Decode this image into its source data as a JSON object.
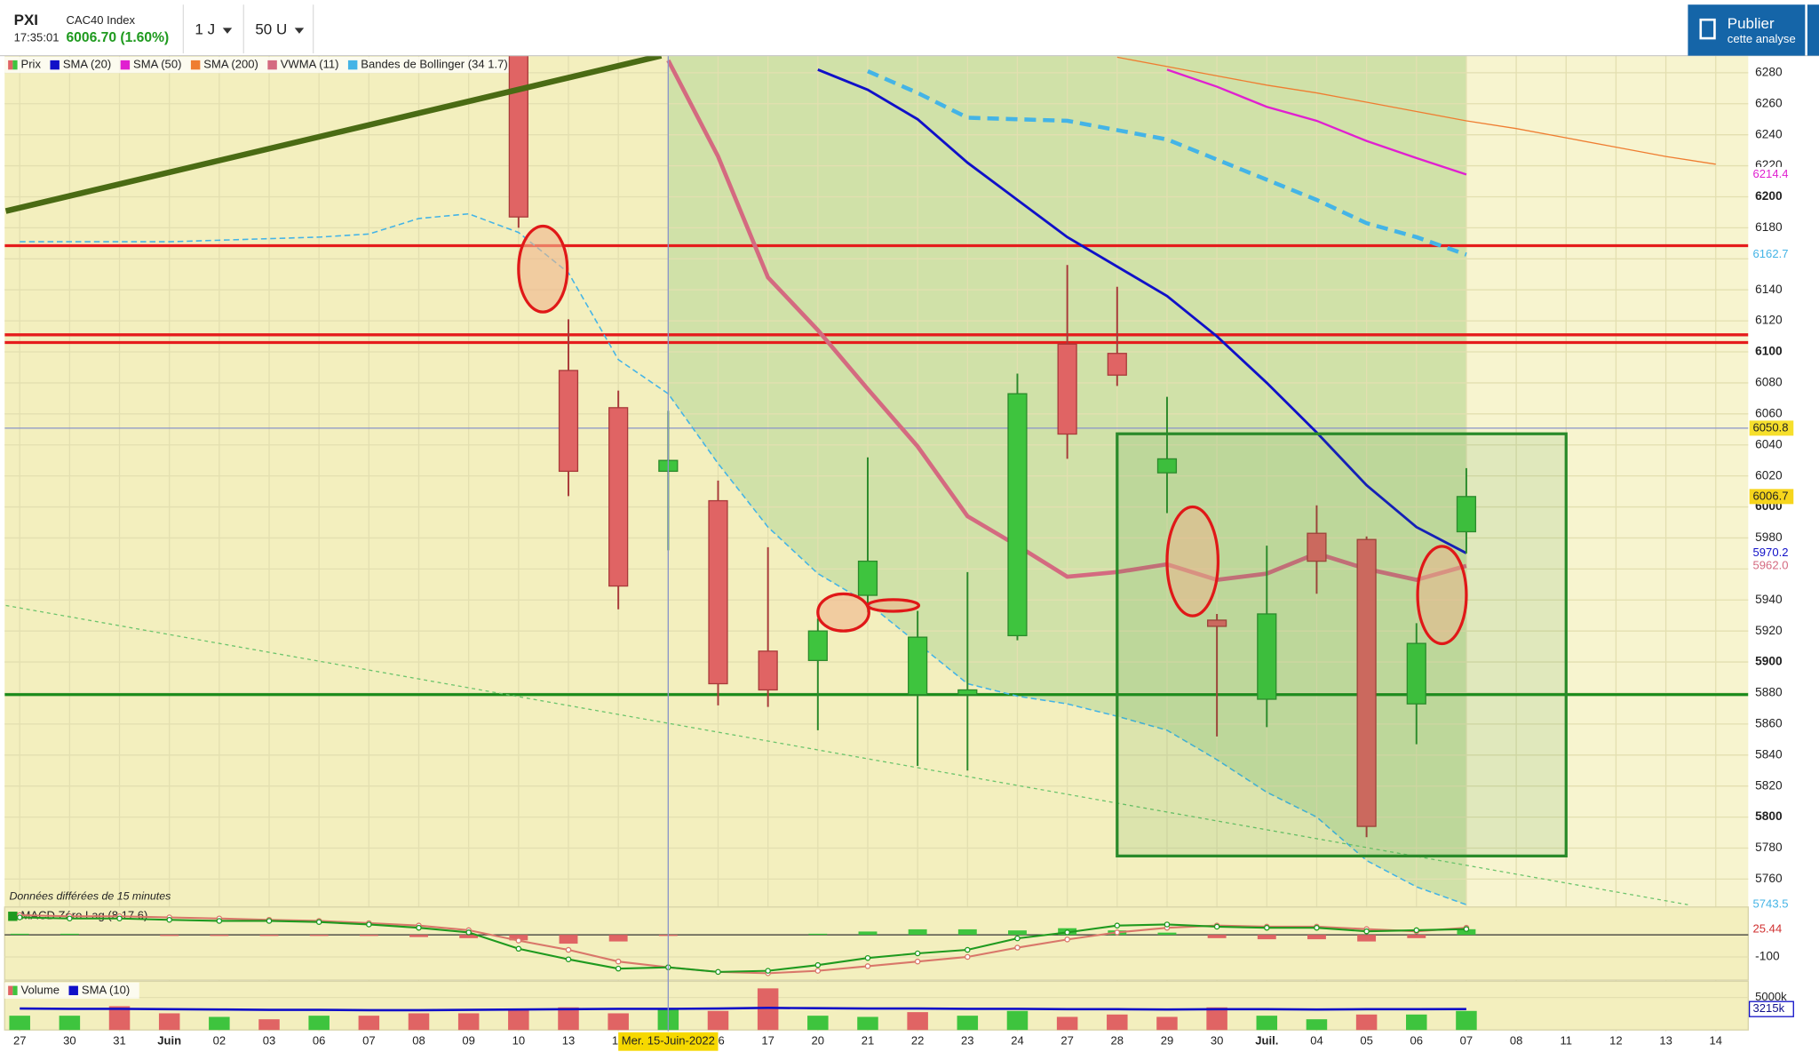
{
  "header": {
    "symbol": "PXI",
    "time": "17:35:01",
    "name": "CAC40 Index",
    "quote": "6006.70 (1.60%)",
    "interval": "1 J",
    "range": "50 U",
    "publish": "Publier",
    "publish_sub": "cette analyse"
  },
  "notice": "Données différées de 15 minutes",
  "chart_data": [
    {
      "type": "candlestick",
      "price_name": "Prix",
      "up_color": "#3ec43e",
      "down_color": "#e06464",
      "categories": [
        "27",
        "30",
        "31",
        "Juin",
        "02",
        "03",
        "06",
        "07",
        "08",
        "09",
        "10",
        "13",
        "14",
        "15",
        "16",
        "17",
        "20",
        "21",
        "22",
        "23",
        "24",
        "27",
        "28",
        "29",
        "30",
        "Juil.",
        "04",
        "05",
        "06",
        "07",
        "08",
        "11",
        "12",
        "13",
        "14"
      ],
      "crosshair": {
        "category": "Mer. 15-Juin-2022",
        "value": 6050.8
      },
      "open": [
        null,
        null,
        null,
        null,
        null,
        null,
        null,
        null,
        null,
        null,
        6300,
        6088,
        6064,
        6023,
        6004,
        5907,
        5901,
        5943,
        5879,
        5879,
        5917,
        6105,
        6099,
        6022,
        5927,
        5876,
        5983,
        5979,
        5873,
        5984,
        null,
        null,
        null,
        null,
        null
      ],
      "high": [
        null,
        null,
        null,
        null,
        null,
        null,
        null,
        null,
        null,
        null,
        6320,
        6121,
        6075,
        6062,
        6017,
        5974,
        5928,
        6032,
        5933,
        5958,
        6086,
        6156,
        6142,
        6071,
        5931,
        5975,
        6001,
        5981,
        5925,
        6025,
        null,
        null,
        null,
        null,
        null
      ],
      "low": [
        null,
        null,
        null,
        null,
        null,
        null,
        null,
        null,
        null,
        null,
        6180,
        6007,
        5934,
        5972,
        5872,
        5871,
        5856,
        5932,
        5833,
        5830,
        5914,
        6031,
        6078,
        5996,
        5852,
        5858,
        5944,
        5787,
        5847,
        5970,
        null,
        null,
        null,
        null,
        null
      ],
      "close": [
        null,
        null,
        null,
        null,
        null,
        null,
        null,
        null,
        null,
        null,
        6187,
        6023,
        5949,
        6030,
        5886,
        5882,
        5920,
        5965,
        5916,
        5882,
        6073,
        6047,
        6085,
        6031,
        5923,
        5931,
        5965,
        5794,
        5912,
        6006.7,
        null,
        null,
        null,
        null,
        null
      ],
      "series": [
        {
          "name": "SMA (20)",
          "color": "#1010c8",
          "values": [
            null,
            null,
            null,
            null,
            null,
            null,
            null,
            null,
            null,
            null,
            null,
            null,
            null,
            null,
            null,
            null,
            6282,
            6269,
            6250,
            6222,
            6198,
            6174,
            6155,
            6136,
            6110,
            6080,
            6048,
            6014,
            5987,
            5970.2,
            null,
            null,
            null,
            null,
            null
          ]
        },
        {
          "name": "SMA (50)",
          "color": "#e020d0",
          "values": [
            null,
            null,
            null,
            null,
            null,
            null,
            null,
            null,
            null,
            null,
            null,
            null,
            null,
            null,
            null,
            null,
            null,
            null,
            null,
            null,
            null,
            null,
            null,
            6282,
            6271,
            6258,
            6249,
            6236,
            6225,
            6214.4,
            null,
            null,
            null,
            null,
            null
          ]
        },
        {
          "name": "SMA (200)",
          "color": "#ef7d31",
          "values": [
            null,
            null,
            null,
            null,
            null,
            null,
            null,
            null,
            null,
            null,
            null,
            null,
            null,
            null,
            null,
            null,
            null,
            null,
            null,
            null,
            null,
            null,
            6290,
            6284,
            6278,
            6272,
            6267,
            6261,
            6255,
            6249,
            6244,
            6238,
            6232,
            6226,
            6221
          ]
        },
        {
          "name": "VWMA (11)",
          "color": "#d46a80",
          "values": [
            null,
            null,
            null,
            null,
            null,
            null,
            null,
            null,
            null,
            null,
            null,
            null,
            null,
            6288,
            6226,
            6148,
            6114,
            6076,
            6039,
            5994,
            5975,
            5955,
            5958,
            5963,
            5953,
            5957,
            5970,
            5960,
            5953,
            5962,
            null,
            null,
            null,
            null,
            null
          ],
          "value_labels": [
            null,
            null,
            null,
            null,
            null,
            null,
            null,
            null,
            null,
            null,
            null,
            null,
            null,
            null,
            null,
            null,
            null,
            null,
            null,
            null,
            null,
            null,
            null,
            null,
            null,
            null,
            null,
            null,
            null,
            "5962.0",
            null,
            null,
            null,
            null,
            null
          ]
        },
        {
          "name": "Bandes de Bollinger (34 1.7)",
          "color": "#44b4e6",
          "line_style": "dashed",
          "values": [
            null,
            null,
            null,
            null,
            null,
            null,
            null,
            null,
            null,
            null,
            null,
            null,
            null,
            null,
            null,
            null,
            null,
            6281,
            6267,
            6251,
            6250,
            6249,
            6243,
            6237,
            6224,
            6211,
            6198,
            6183,
            6174,
            6162.7,
            null,
            null,
            null,
            null,
            null
          ],
          "lower": [
            6171,
            6171,
            6171,
            6171,
            6172,
            6173,
            6174,
            6176,
            6186,
            6189,
            6177,
            6151,
            6095,
            6073,
            6028,
            5987,
            5957,
            5938,
            5912,
            5886,
            5878,
            5873,
            5865,
            5856,
            5837,
            5816,
            5800,
            5772,
            5755,
            5743.5,
            null,
            null,
            null,
            null,
            null
          ]
        }
      ],
      "hlines": [
        {
          "value": 6168.5,
          "color": "#e51c1c"
        },
        {
          "value": 6111,
          "color": "#e51c1c"
        },
        {
          "value": 6106,
          "color": "#e51c1c"
        },
        {
          "value": 5879,
          "color": "#1a8a1a"
        }
      ],
      "ylim": [
        5742,
        6291
      ],
      "yticks": [
        6280,
        6260,
        6240,
        6220,
        6200,
        6180,
        6160,
        6140,
        6120,
        6100,
        6080,
        6060,
        6040,
        6020,
        6000,
        5980,
        5960,
        5940,
        5920,
        5900,
        5880,
        5860,
        5840,
        5820,
        5800,
        5780,
        5760
      ],
      "grid": true
    },
    {
      "type": "macd",
      "title": "MACD Zéro Lag (8 17 6)",
      "up_color": "#3ec43e",
      "down_color": "#e06464",
      "macd_color": "#1f9a1f",
      "signal_color": "#d9776a",
      "histogram": [
        5,
        5,
        0,
        -5,
        -5,
        -5,
        -5,
        -5,
        -10,
        -15,
        -25,
        -40,
        -30,
        -5,
        0,
        0,
        5,
        15,
        25,
        25,
        20,
        30,
        20,
        10,
        -15,
        -20,
        -20,
        -30,
        -15,
        25.44,
        null,
        null,
        null,
        null,
        null
      ],
      "macd": [
        79,
        74,
        74,
        68,
        63,
        63,
        58,
        47,
        32,
        11,
        -63,
        -111,
        -153,
        -147,
        -168,
        -163,
        -137,
        -105,
        -84,
        -68,
        -16,
        11,
        42,
        47,
        37,
        32,
        32,
        16,
        21,
        26,
        null,
        null,
        null,
        null,
        null
      ],
      "signal": [
        89,
        84,
        84,
        79,
        74,
        68,
        63,
        53,
        42,
        21,
        -26,
        -68,
        -121,
        -147,
        -168,
        -174,
        -163,
        -142,
        -121,
        -100,
        -58,
        -21,
        11,
        32,
        42,
        37,
        37,
        26,
        16,
        32,
        null,
        null,
        null,
        null,
        null
      ],
      "ylim": [
        -205,
        126
      ],
      "yticks": [
        -100
      ]
    },
    {
      "type": "volume",
      "ylim": [
        0,
        7500
      ],
      "yticks": [
        {
          "value": 5000,
          "label": "5000k"
        }
      ],
      "series": [
        {
          "name": "Volume",
          "colors": [
            "#3ec43e",
            "#3ec43e",
            "#e06464",
            "#e06464",
            "#3ec43e",
            "#e06464",
            "#3ec43e",
            "#e06464",
            "#e06464",
            "#e06464",
            "#e06464",
            "#e06464",
            "#e06464",
            "#3ec43e",
            "#e06464",
            "#e06464",
            "#3ec43e",
            "#3ec43e",
            "#e06464",
            "#3ec43e",
            "#3ec43e",
            "#e06464",
            "#e06464",
            "#e06464",
            "#e06464",
            "#3ec43e",
            "#3ec43e",
            "#e06464",
            "#3ec43e",
            "#3ec43e",
            null,
            null,
            null,
            null,
            null
          ],
          "values": [
            2196,
            2196,
            3660,
            2562,
            2013,
            1647,
            2196,
            2196,
            2562,
            2562,
            3111,
            3477,
            2562,
            3111,
            2928,
            6405,
            2196,
            2013,
            2745,
            2196,
            2928,
            2013,
            2379,
            2013,
            3477,
            2196,
            1647,
            2379,
            2379,
            2928,
            null,
            null,
            null,
            null,
            null
          ]
        },
        {
          "name": "SMA (10)",
          "color": "#1010c8",
          "values": [
            3300,
            3250,
            3250,
            3200,
            3150,
            3100,
            3100,
            3050,
            3050,
            3100,
            3150,
            3200,
            3250,
            3250,
            3300,
            3400,
            3350,
            3300,
            3300,
            3250,
            3250,
            3200,
            3200,
            3150,
            3200,
            3200,
            3150,
            3200,
            3200,
            3215,
            null,
            null,
            null,
            null,
            null
          ],
          "value_labels": [
            null,
            null,
            null,
            null,
            null,
            null,
            null,
            null,
            null,
            null,
            null,
            null,
            null,
            null,
            null,
            null,
            null,
            null,
            null,
            null,
            null,
            null,
            null,
            null,
            null,
            null,
            null,
            null,
            null,
            "3215k",
            null,
            null,
            null,
            null,
            null
          ]
        }
      ]
    }
  ]
}
